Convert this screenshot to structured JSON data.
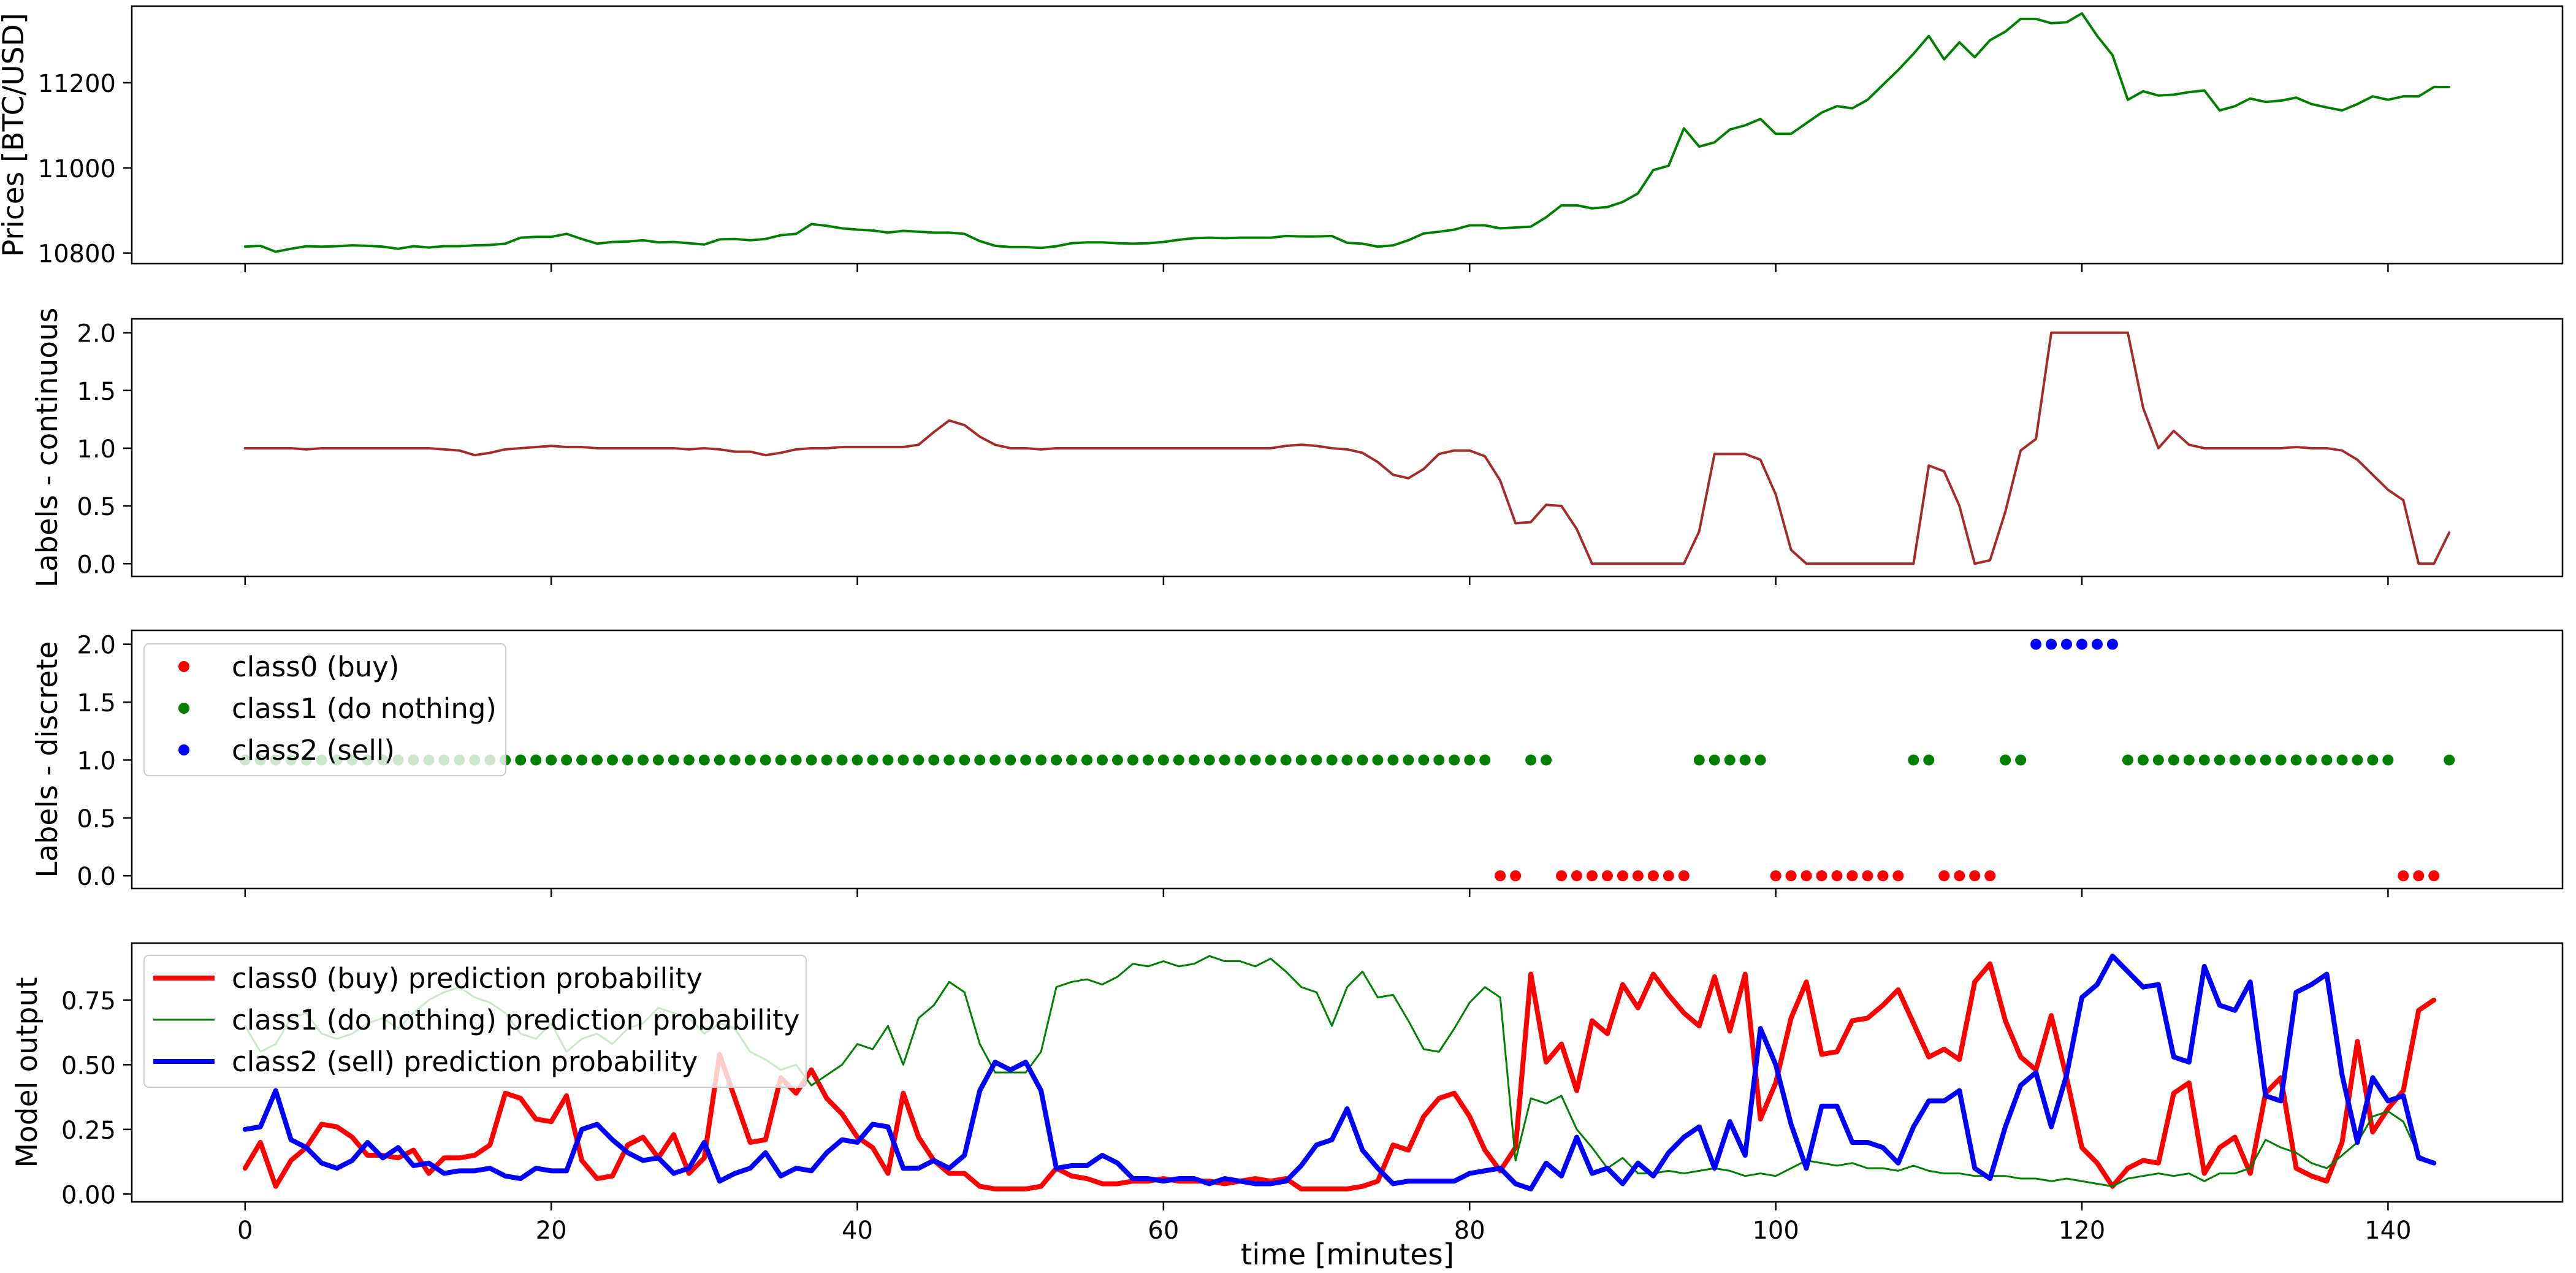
{
  "figure": {
    "xlabel": "time [minutes]",
    "x_ticks": [
      0,
      20,
      40,
      60,
      80,
      100,
      120,
      140
    ],
    "xlim": [
      -7.4,
      151.4
    ]
  },
  "chart_data": [
    {
      "type": "line",
      "ylabel": "Prices [BTC/USD]",
      "ylim": [
        10775,
        11380
      ],
      "y_ticks": [
        10800,
        11000,
        11200
      ],
      "grid": false,
      "series": [
        {
          "color": "#008000",
          "x_start": 0,
          "values": [
            10815,
            10817,
            10803,
            10810,
            10816,
            10815,
            10816,
            10818,
            10817,
            10815,
            10810,
            10816,
            10813,
            10816,
            10816,
            10818,
            10819,
            10822,
            10836,
            10838,
            10838,
            10845,
            10833,
            10822,
            10826,
            10827,
            10830,
            10825,
            10826,
            10823,
            10820,
            10832,
            10833,
            10830,
            10833,
            10842,
            10845,
            10868,
            10864,
            10858,
            10855,
            10853,
            10848,
            10852,
            10850,
            10848,
            10848,
            10845,
            10828,
            10817,
            10814,
            10814,
            10812,
            10816,
            10823,
            10825,
            10825,
            10823,
            10822,
            10823,
            10826,
            10831,
            10835,
            10836,
            10835,
            10836,
            10836,
            10836,
            10840,
            10839,
            10839,
            10840,
            10824,
            10822,
            10815,
            10818,
            10830,
            10846,
            10850,
            10855,
            10865,
            10865,
            10858,
            10860,
            10862,
            10884,
            10912,
            10912,
            10905,
            10908,
            10920,
            10940,
            10995,
            11005,
            11093,
            11050,
            11060,
            11090,
            11100,
            11115,
            11080,
            11080,
            11105,
            11130,
            11145,
            11140,
            11160,
            11195,
            11230,
            11268,
            11310,
            11255,
            11295,
            11260,
            11300,
            11320,
            11350,
            11350,
            11340,
            11342,
            11363,
            11310,
            11265,
            11160,
            11180,
            11170,
            11172,
            11178,
            11182,
            11135,
            11145,
            11163,
            11155,
            11158,
            11165,
            11150,
            11142,
            11135,
            11150,
            11168,
            11160,
            11168,
            11168,
            11190,
            11190
          ]
        }
      ]
    },
    {
      "type": "line",
      "ylabel": "Labels - continuous",
      "ylim": [
        -0.11,
        2.12
      ],
      "y_ticks": [
        0.0,
        0.5,
        1.0,
        1.5,
        2.0
      ],
      "grid": false,
      "series": [
        {
          "color": "#a52a2a",
          "x_start": 0,
          "values": [
            1.0,
            1.0,
            1.0,
            1.0,
            0.99,
            1.0,
            1.0,
            1.0,
            1.0,
            1.0,
            1.0,
            1.0,
            1.0,
            0.99,
            0.98,
            0.94,
            0.96,
            0.99,
            1.0,
            1.01,
            1.02,
            1.01,
            1.01,
            1.0,
            1.0,
            1.0,
            1.0,
            1.0,
            1.0,
            0.99,
            1.0,
            0.99,
            0.97,
            0.97,
            0.94,
            0.96,
            0.99,
            1.0,
            1.0,
            1.01,
            1.01,
            1.01,
            1.01,
            1.01,
            1.03,
            1.14,
            1.24,
            1.2,
            1.1,
            1.03,
            1.0,
            1.0,
            0.99,
            1.0,
            1.0,
            1.0,
            1.0,
            1.0,
            1.0,
            1.0,
            1.0,
            1.0,
            1.0,
            1.0,
            1.0,
            1.0,
            1.0,
            1.0,
            1.02,
            1.03,
            1.02,
            1.0,
            0.99,
            0.96,
            0.88,
            0.77,
            0.74,
            0.82,
            0.95,
            0.98,
            0.98,
            0.93,
            0.72,
            0.35,
            0.36,
            0.51,
            0.5,
            0.3,
            0.0,
            0.0,
            0.0,
            0.0,
            0.0,
            0.0,
            0.0,
            0.28,
            0.95,
            0.95,
            0.95,
            0.9,
            0.6,
            0.12,
            0.0,
            0.0,
            0.0,
            0.0,
            0.0,
            0.0,
            0.0,
            0.0,
            0.85,
            0.8,
            0.5,
            0.0,
            0.03,
            0.45,
            0.98,
            1.08,
            2.0,
            2.0,
            2.0,
            2.0,
            2.0,
            2.0,
            1.35,
            1.0,
            1.15,
            1.03,
            1.0,
            1.0,
            1.0,
            1.0,
            1.0,
            1.0,
            1.01,
            1.0,
            1.0,
            0.98,
            0.9,
            0.77,
            0.64,
            0.55,
            0.0,
            0.0,
            0.27
          ]
        }
      ]
    },
    {
      "type": "scatter",
      "ylabel": "Labels - discrete",
      "ylim": [
        -0.11,
        2.12
      ],
      "y_ticks": [
        0.0,
        0.5,
        1.0,
        1.5,
        2.0
      ],
      "grid": false,
      "legend_position": "upper-left",
      "series": [
        {
          "name": "class0 (buy)",
          "color": "#ff0000",
          "y": 0,
          "x": [
            82,
            83,
            86,
            87,
            88,
            89,
            90,
            91,
            92,
            93,
            94,
            100,
            101,
            102,
            103,
            104,
            105,
            106,
            107,
            108,
            111,
            112,
            113,
            114,
            141,
            142,
            143
          ]
        },
        {
          "name": "class1 (do nothing)",
          "color": "#008000",
          "y": 1,
          "x": [
            0,
            1,
            2,
            3,
            4,
            5,
            6,
            7,
            8,
            9,
            10,
            11,
            12,
            13,
            14,
            15,
            16,
            17,
            18,
            19,
            20,
            21,
            22,
            23,
            24,
            25,
            26,
            27,
            28,
            29,
            30,
            31,
            32,
            33,
            34,
            35,
            36,
            37,
            38,
            39,
            40,
            41,
            42,
            43,
            44,
            45,
            46,
            47,
            48,
            49,
            50,
            51,
            52,
            53,
            54,
            55,
            56,
            57,
            58,
            59,
            60,
            61,
            62,
            63,
            64,
            65,
            66,
            67,
            68,
            69,
            70,
            71,
            72,
            73,
            74,
            75,
            76,
            77,
            78,
            79,
            80,
            81,
            84,
            85,
            95,
            96,
            97,
            98,
            99,
            109,
            110,
            115,
            116,
            123,
            124,
            125,
            126,
            127,
            128,
            129,
            130,
            131,
            132,
            133,
            134,
            135,
            136,
            137,
            138,
            139,
            140,
            144
          ]
        },
        {
          "name": "class2 (sell)",
          "color": "#0000ff",
          "y": 2,
          "x": [
            117,
            118,
            119,
            120,
            121,
            122
          ]
        }
      ]
    },
    {
      "type": "line",
      "ylabel": "Model output",
      "ylim": [
        -0.03,
        0.97
      ],
      "y_ticks": [
        0.0,
        0.25,
        0.5,
        0.75
      ],
      "grid": false,
      "legend_position": "upper-left",
      "series": [
        {
          "name": "class0 (buy) prediction probability",
          "color": "#ff0000",
          "x_start": 0,
          "values": [
            0.1,
            0.2,
            0.03,
            0.13,
            0.18,
            0.27,
            0.26,
            0.22,
            0.15,
            0.15,
            0.14,
            0.17,
            0.08,
            0.14,
            0.14,
            0.15,
            0.19,
            0.39,
            0.37,
            0.29,
            0.28,
            0.38,
            0.13,
            0.06,
            0.07,
            0.19,
            0.22,
            0.14,
            0.23,
            0.08,
            0.14,
            0.54,
            0.37,
            0.2,
            0.21,
            0.45,
            0.39,
            0.48,
            0.37,
            0.31,
            0.22,
            0.18,
            0.08,
            0.39,
            0.22,
            0.13,
            0.08,
            0.08,
            0.03,
            0.02,
            0.02,
            0.02,
            0.03,
            0.1,
            0.07,
            0.06,
            0.04,
            0.04,
            0.05,
            0.05,
            0.06,
            0.05,
            0.05,
            0.05,
            0.04,
            0.05,
            0.06,
            0.05,
            0.06,
            0.02,
            0.02,
            0.02,
            0.02,
            0.03,
            0.05,
            0.19,
            0.17,
            0.3,
            0.37,
            0.39,
            0.3,
            0.17,
            0.09,
            0.18,
            0.85,
            0.51,
            0.58,
            0.4,
            0.67,
            0.62,
            0.81,
            0.72,
            0.85,
            0.77,
            0.7,
            0.65,
            0.84,
            0.63,
            0.85,
            0.29,
            0.43,
            0.68,
            0.82,
            0.54,
            0.55,
            0.67,
            0.68,
            0.73,
            0.79,
            0.66,
            0.53,
            0.56,
            0.52,
            0.82,
            0.89,
            0.67,
            0.53,
            0.48,
            0.69,
            0.45,
            0.18,
            0.12,
            0.03,
            0.1,
            0.13,
            0.12,
            0.39,
            0.43,
            0.08,
            0.18,
            0.22,
            0.08,
            0.39,
            0.45,
            0.1,
            0.07,
            0.05,
            0.2,
            0.59,
            0.24,
            0.33,
            0.4,
            0.71,
            0.75
          ]
        },
        {
          "name": "class1 (do nothing) prediction probability",
          "color": "#008000",
          "x_start": 0,
          "values": [
            0.65,
            0.55,
            0.58,
            0.68,
            0.7,
            0.62,
            0.6,
            0.62,
            0.66,
            0.68,
            0.64,
            0.7,
            0.75,
            0.78,
            0.8,
            0.76,
            0.74,
            0.7,
            0.62,
            0.6,
            0.66,
            0.55,
            0.6,
            0.62,
            0.58,
            0.64,
            0.66,
            0.72,
            0.7,
            0.68,
            0.62,
            0.66,
            0.64,
            0.55,
            0.52,
            0.48,
            0.5,
            0.42,
            0.46,
            0.5,
            0.58,
            0.56,
            0.65,
            0.5,
            0.68,
            0.73,
            0.82,
            0.78,
            0.58,
            0.47,
            0.47,
            0.47,
            0.55,
            0.8,
            0.82,
            0.83,
            0.81,
            0.84,
            0.89,
            0.88,
            0.9,
            0.88,
            0.89,
            0.92,
            0.9,
            0.9,
            0.88,
            0.91,
            0.86,
            0.8,
            0.78,
            0.65,
            0.8,
            0.86,
            0.76,
            0.77,
            0.67,
            0.56,
            0.55,
            0.64,
            0.74,
            0.8,
            0.76,
            0.13,
            0.37,
            0.35,
            0.38,
            0.25,
            0.18,
            0.1,
            0.14,
            0.08,
            0.08,
            0.09,
            0.08,
            0.09,
            0.1,
            0.09,
            0.07,
            0.08,
            0.07,
            0.1,
            0.13,
            0.12,
            0.11,
            0.12,
            0.1,
            0.1,
            0.09,
            0.11,
            0.09,
            0.08,
            0.08,
            0.07,
            0.07,
            0.07,
            0.06,
            0.06,
            0.05,
            0.06,
            0.05,
            0.04,
            0.03,
            0.06,
            0.07,
            0.08,
            0.07,
            0.08,
            0.05,
            0.08,
            0.08,
            0.1,
            0.21,
            0.18,
            0.16,
            0.12,
            0.1,
            0.15,
            0.2,
            0.3,
            0.32,
            0.28,
            0.15,
            0.12
          ]
        },
        {
          "name": "class2 (sell) prediction probability",
          "color": "#0000ff",
          "x_start": 0,
          "values": [
            0.25,
            0.26,
            0.4,
            0.21,
            0.18,
            0.12,
            0.1,
            0.13,
            0.2,
            0.14,
            0.18,
            0.11,
            0.12,
            0.08,
            0.09,
            0.09,
            0.1,
            0.07,
            0.06,
            0.1,
            0.09,
            0.09,
            0.25,
            0.27,
            0.21,
            0.16,
            0.13,
            0.14,
            0.08,
            0.1,
            0.2,
            0.05,
            0.08,
            0.1,
            0.16,
            0.07,
            0.1,
            0.09,
            0.16,
            0.21,
            0.2,
            0.27,
            0.26,
            0.1,
            0.1,
            0.13,
            0.1,
            0.15,
            0.4,
            0.51,
            0.48,
            0.51,
            0.4,
            0.1,
            0.11,
            0.11,
            0.15,
            0.12,
            0.06,
            0.06,
            0.05,
            0.06,
            0.06,
            0.04,
            0.06,
            0.05,
            0.04,
            0.04,
            0.05,
            0.11,
            0.19,
            0.21,
            0.33,
            0.17,
            0.1,
            0.04,
            0.05,
            0.05,
            0.05,
            0.05,
            0.08,
            0.09,
            0.1,
            0.04,
            0.02,
            0.12,
            0.07,
            0.22,
            0.08,
            0.1,
            0.04,
            0.12,
            0.07,
            0.16,
            0.22,
            0.26,
            0.1,
            0.28,
            0.15,
            0.64,
            0.5,
            0.27,
            0.1,
            0.34,
            0.34,
            0.2,
            0.2,
            0.18,
            0.12,
            0.26,
            0.36,
            0.36,
            0.4,
            0.1,
            0.06,
            0.26,
            0.42,
            0.47,
            0.26,
            0.46,
            0.76,
            0.81,
            0.92,
            0.86,
            0.8,
            0.81,
            0.53,
            0.51,
            0.88,
            0.73,
            0.71,
            0.82,
            0.38,
            0.36,
            0.78,
            0.81,
            0.85,
            0.46,
            0.2,
            0.45,
            0.36,
            0.38,
            0.14,
            0.12
          ]
        }
      ]
    }
  ]
}
